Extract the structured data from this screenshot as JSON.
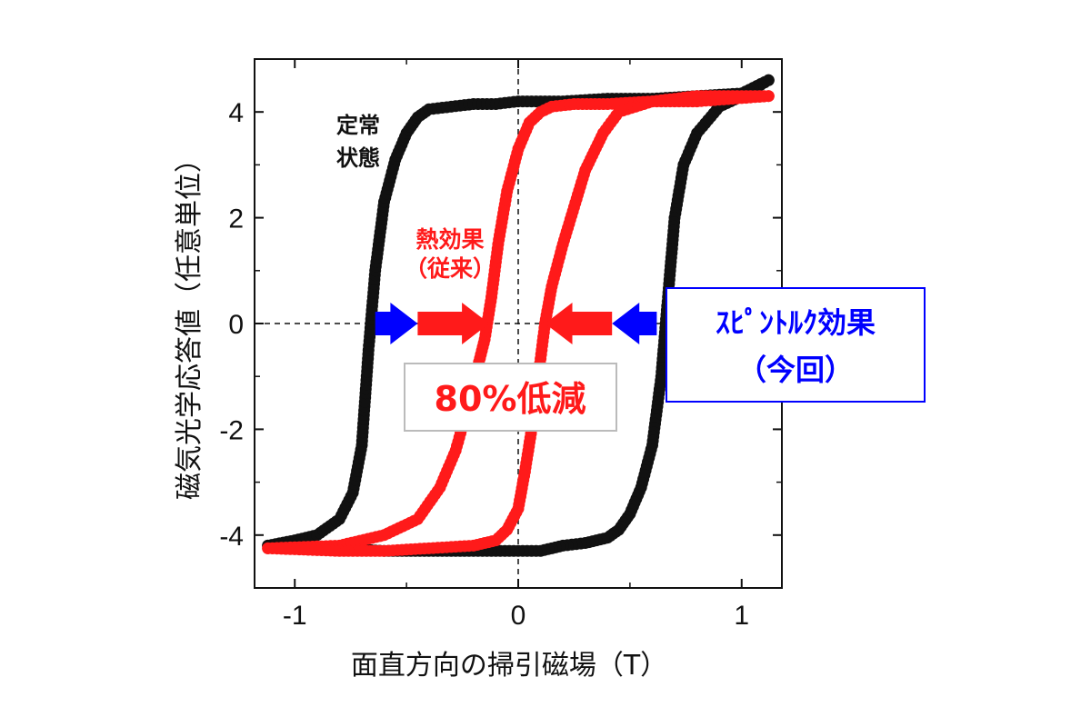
{
  "chart_data": {
    "type": "scatter",
    "xlabel": "面直方向の掃引磁場（T）",
    "ylabel": "磁気光学応答値（任意単位）",
    "xlim": [
      -1.18,
      1.18
    ],
    "ylim": [
      -5.0,
      5.0
    ],
    "x_ticks": [
      -1,
      0,
      1
    ],
    "x_tick_labels": [
      "-1",
      "0",
      "1"
    ],
    "y_ticks": [
      -4,
      -2,
      0,
      2,
      4
    ],
    "y_tick_labels": [
      "-4",
      "-2",
      "0",
      "2",
      "4"
    ],
    "zero_lines": "dashed",
    "series": [
      {
        "color": "#111111",
        "branches": [
          {
            "x": [
              -1.12,
              -1.0,
              -0.9,
              -0.8,
              -0.74,
              -0.7,
              -0.67,
              -0.64,
              -0.6,
              -0.55,
              -0.5,
              -0.45,
              -0.4,
              -0.3,
              -0.2,
              -0.1,
              0.0,
              0.2,
              0.4,
              0.6,
              0.8,
              1.0,
              1.12
            ],
            "y": [
              -4.2,
              -4.1,
              -4.0,
              -3.7,
              -3.2,
              -2.3,
              -0.5,
              1.0,
              2.3,
              3.1,
              3.6,
              3.9,
              4.05,
              4.1,
              4.15,
              4.15,
              4.2,
              4.2,
              4.25,
              4.25,
              4.3,
              4.35,
              4.6
            ]
          },
          {
            "x": [
              1.12,
              1.0,
              0.9,
              0.8,
              0.74,
              0.7,
              0.67,
              0.64,
              0.6,
              0.55,
              0.5,
              0.45,
              0.4,
              0.3,
              0.2,
              0.1,
              0.0,
              -0.2,
              -0.4,
              -0.6,
              -0.8,
              -1.0,
              -1.12
            ],
            "y": [
              4.6,
              4.3,
              4.1,
              3.6,
              3.0,
              2.0,
              0.5,
              -1.0,
              -2.3,
              -3.1,
              -3.6,
              -3.9,
              -4.05,
              -4.15,
              -4.2,
              -4.3,
              -4.3,
              -4.3,
              -4.3,
              -4.3,
              -4.25,
              -4.2,
              -4.2
            ]
          }
        ]
      },
      {
        "color": "#ff1a1a",
        "branches": [
          {
            "x": [
              -1.12,
              -0.8,
              -0.6,
              -0.45,
              -0.35,
              -0.28,
              -0.22,
              -0.18,
              -0.15,
              -0.12,
              -0.09,
              -0.05,
              0.0,
              0.05,
              0.1,
              0.15,
              0.25,
              0.4,
              0.6,
              0.8,
              1.12
            ],
            "y": [
              -4.25,
              -4.2,
              -4.0,
              -3.7,
              -3.1,
              -2.4,
              -1.5,
              -0.8,
              -0.3,
              0.5,
              1.5,
              2.5,
              3.3,
              3.8,
              4.0,
              4.1,
              4.15,
              4.15,
              4.2,
              4.2,
              4.3
            ]
          },
          {
            "x": [
              1.12,
              0.8,
              0.6,
              0.45,
              0.38,
              0.3,
              0.25,
              0.2,
              0.15,
              0.12,
              0.09,
              0.06,
              0.03,
              0.0,
              -0.05,
              -0.1,
              -0.2,
              -0.4,
              -0.6,
              -0.8,
              -1.12
            ],
            "y": [
              4.3,
              4.3,
              4.2,
              4.0,
              3.6,
              2.9,
              2.2,
              1.5,
              0.7,
              0.0,
              -1.0,
              -2.0,
              -2.8,
              -3.5,
              -3.9,
              -4.1,
              -4.2,
              -4.25,
              -4.3,
              -4.3,
              -4.25
            ]
          }
        ]
      }
    ],
    "annotations": {
      "steady_state": [
        "定常",
        "状態"
      ],
      "thermal_effect": [
        "熱効果",
        "（従来）"
      ],
      "reduction": "80%低減",
      "spin_torque": [
        "ｽﾋﾟﾝﾄﾙｸ効果",
        "（今回）"
      ]
    },
    "arrows": [
      {
        "x_from": -0.64,
        "x_to": -0.45,
        "color": "#0000ff"
      },
      {
        "x_from": -0.45,
        "x_to": -0.13,
        "color": "#ff1a1a"
      },
      {
        "x_from": 0.62,
        "x_to": 0.42,
        "color": "#0000ff"
      },
      {
        "x_from": 0.42,
        "x_to": 0.12,
        "color": "#ff1a1a"
      }
    ],
    "colors": {
      "black": "#111111",
      "red": "#ff1a1a",
      "blue": "#0000ff",
      "box_border_gray": "#bbbbbb"
    }
  }
}
